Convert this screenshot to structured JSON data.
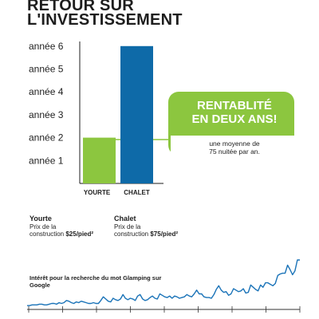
{
  "title_line1": "RETOUR SUR",
  "title_line2": "L'INVESTISSEMENT",
  "colors": {
    "yourte": "#8cc63f",
    "chalet": "#0e6aa8",
    "text": "#1e1e1e",
    "trend": "#1a73b8"
  },
  "chart_data": [
    {
      "type": "bar",
      "categories": [
        "YOURTE",
        "CHALET"
      ],
      "values": [
        2,
        6
      ],
      "ytick_labels": [
        "année 1",
        "année 2",
        "année 3",
        "année 4",
        "année 5",
        "année 6"
      ],
      "ylim": [
        0,
        6
      ]
    },
    {
      "type": "line",
      "title": "Intérêt pour la recherche du mot Glamping sur Google",
      "values": [
        3,
        3,
        4,
        4,
        4,
        5,
        5,
        4,
        4,
        5,
        6,
        6,
        5,
        7,
        6,
        7,
        10,
        9,
        7,
        6,
        8,
        7,
        9,
        8,
        7,
        6,
        6,
        7,
        6,
        6,
        10,
        15,
        12,
        9,
        8,
        13,
        11,
        10,
        12,
        18,
        13,
        11,
        13,
        12,
        10,
        16,
        18,
        12,
        10,
        11,
        14,
        16,
        13,
        12,
        19,
        17,
        15,
        14,
        16,
        13,
        16,
        15,
        13,
        14,
        15,
        18,
        16,
        15,
        19,
        24,
        19,
        19,
        15,
        14,
        14,
        13,
        18,
        25,
        30,
        24,
        21,
        22,
        17,
        19,
        26,
        24,
        22,
        23,
        26,
        20,
        21,
        31,
        28,
        25,
        23,
        31,
        28,
        34,
        34,
        32,
        30,
        33,
        44,
        46,
        47,
        47,
        58,
        52,
        45,
        50,
        65,
        65
      ]
    }
  ],
  "badge": {
    "title_line1": "RENTABLITÉ",
    "title_line2": "EN DEUX ANS!",
    "sub_line1": "une moyenne de",
    "sub_line2": "75 nuitée par an."
  },
  "notes": {
    "yourte": {
      "name": "Yourte",
      "line1": "Prix de la",
      "line2_prefix": "construction ",
      "price": "$25/pied²"
    },
    "chalet": {
      "name": "Chalet",
      "line1": "Prix de la",
      "line2_prefix": "construction ",
      "price": "$75/pied²"
    }
  },
  "google_label": "Intérêt pour la recherche du mot Glamping sur Google"
}
